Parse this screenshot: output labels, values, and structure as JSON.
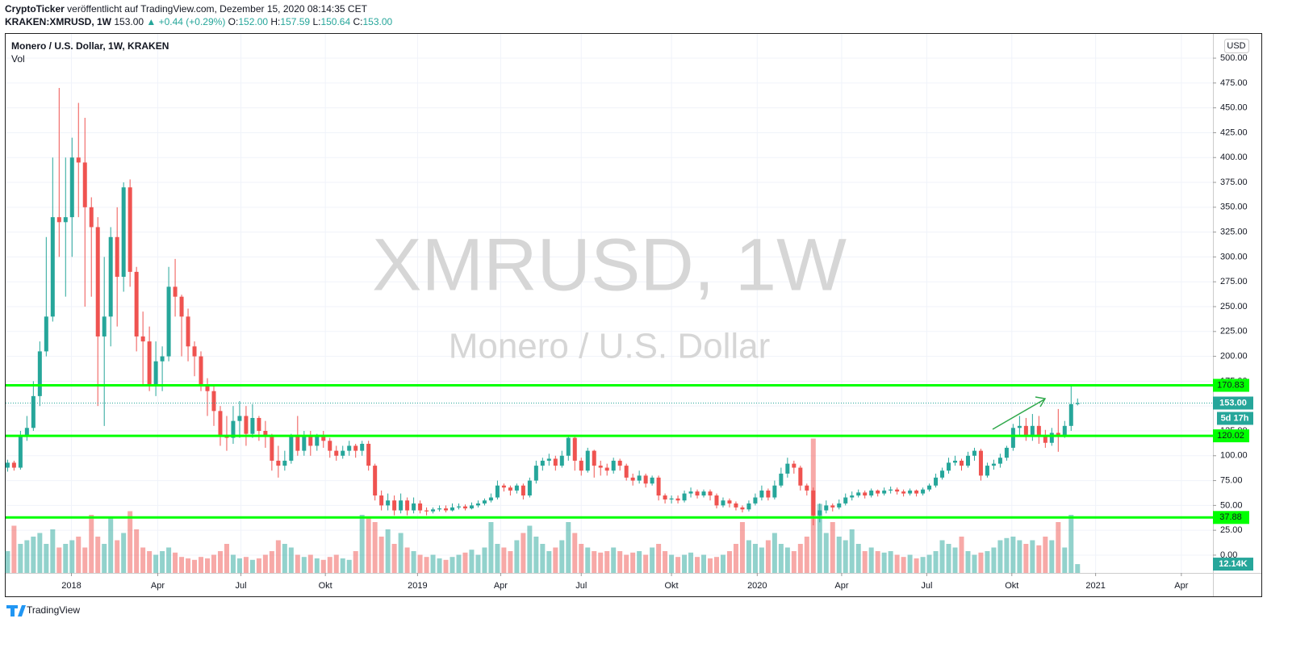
{
  "header": {
    "author": "CryptoTicker",
    "published": "veröffentlicht auf TradingView.com, Dezember 15, 2020 08:14:35 CET",
    "symbol": "KRAKEN:XMRUSD, 1W",
    "last": "153.00",
    "change": "▲ +0.44 (+0.29%)",
    "o_label": "O:",
    "o": "152.00",
    "h_label": "H:",
    "h": "157.59",
    "l_label": "L:",
    "l": "150.64",
    "c_label": "C:",
    "c": "153.00"
  },
  "footer": {
    "brand": "TradingView"
  },
  "chart_data": {
    "type": "candlestick",
    "title": "Monero / U.S. Dollar, 1W, KRAKEN",
    "volume_title": "Vol",
    "watermark": "XMRUSD, 1W",
    "watermark_subtitle": "Monero / U.S. Dollar",
    "currency": "USD",
    "up_color": "#26a69a",
    "down_color": "#ef5350",
    "level_color": "#00ff00",
    "grid": true,
    "ylim": [
      -17.9,
      524.4
    ],
    "xlim": [
      -0.3,
      187
    ],
    "yticks": [
      {
        "value": 0,
        "label": "0.00"
      },
      {
        "value": 25,
        "label": "25.00"
      },
      {
        "value": 50,
        "label": "50.00"
      },
      {
        "value": 75,
        "label": "75.00"
      },
      {
        "value": 100,
        "label": "100.00"
      },
      {
        "value": 125,
        "label": "125.00"
      },
      {
        "value": 150,
        "label": "150.00"
      },
      {
        "value": 175,
        "label": "175.00"
      },
      {
        "value": 200,
        "label": "200.00"
      },
      {
        "value": 225,
        "label": "225.00"
      },
      {
        "value": 250,
        "label": "250.00"
      },
      {
        "value": 275,
        "label": "275.00"
      },
      {
        "value": 300,
        "label": "300.00"
      },
      {
        "value": 325,
        "label": "325.00"
      },
      {
        "value": 350,
        "label": "350.00"
      },
      {
        "value": 375,
        "label": "375.00"
      },
      {
        "value": 400,
        "label": "400.00"
      },
      {
        "value": 425,
        "label": "425.00"
      },
      {
        "value": 450,
        "label": "450.00"
      },
      {
        "value": 475,
        "label": "475.00"
      },
      {
        "value": 500,
        "label": "500.00"
      }
    ],
    "xticks": [
      {
        "value": 9.9,
        "label": "2018"
      },
      {
        "value": 23.3,
        "label": "Apr"
      },
      {
        "value": 36.2,
        "label": "Jul"
      },
      {
        "value": 49.3,
        "label": "Okt"
      },
      {
        "value": 63.6,
        "label": "2019"
      },
      {
        "value": 76.5,
        "label": "Apr"
      },
      {
        "value": 89,
        "label": "Jul"
      },
      {
        "value": 103,
        "label": "Okt"
      },
      {
        "value": 116.3,
        "label": "2020"
      },
      {
        "value": 129.4,
        "label": "Apr"
      },
      {
        "value": 142.6,
        "label": "Jul"
      },
      {
        "value": 155.8,
        "label": "Okt"
      },
      {
        "value": 168.8,
        "label": "2021"
      },
      {
        "value": 182.1,
        "label": "Apr"
      }
    ],
    "levels": [
      170.83,
      120.02,
      37.88
    ],
    "last_price": {
      "value": 153,
      "label": "153.00"
    },
    "countdown": "5d 17h",
    "open": [
      88,
      93,
      88,
      120,
      128,
      160,
      205,
      240,
      340,
      335,
      340,
      400,
      395,
      350,
      330,
      220,
      240,
      320,
      280,
      370,
      285,
      220,
      215,
      170,
      195,
      200,
      270,
      260,
      240,
      210,
      200,
      170,
      165,
      145,
      120,
      118,
      135,
      140,
      122,
      138,
      125,
      120,
      95,
      90,
      95,
      120,
      105,
      120,
      110,
      120,
      115,
      105,
      100,
      105,
      110,
      105,
      112,
      90,
      60,
      50,
      55,
      45,
      55,
      45,
      52,
      45,
      44,
      46,
      47,
      45,
      48,
      49,
      47,
      50,
      52,
      55,
      58,
      70,
      68,
      65,
      70,
      60,
      75,
      90,
      95,
      97,
      90,
      100,
      118,
      95,
      85,
      105,
      90,
      88,
      85,
      95,
      90,
      78,
      75,
      80,
      72,
      78,
      60,
      56,
      57,
      55,
      62,
      64,
      60,
      64,
      60,
      50,
      55,
      52,
      48,
      46,
      52,
      58,
      65,
      58,
      70,
      82,
      92,
      88,
      70,
      65,
      40,
      45,
      50,
      48,
      52,
      58,
      60,
      63,
      60,
      65,
      62,
      65,
      66,
      64,
      62,
      65,
      62,
      66,
      70,
      78,
      85,
      93,
      95,
      90,
      100,
      105,
      80,
      90,
      92,
      98,
      108,
      128,
      130,
      120,
      130,
      120,
      113,
      123,
      120,
      130,
      152
    ],
    "high": [
      96,
      95,
      125,
      140,
      175,
      215,
      320,
      400,
      470,
      400,
      420,
      455,
      440,
      360,
      340,
      300,
      330,
      350,
      375,
      378,
      290,
      245,
      230,
      215,
      210,
      290,
      298,
      262,
      248,
      215,
      205,
      178,
      170,
      150,
      140,
      150,
      155,
      150,
      152,
      140,
      135,
      122,
      110,
      105,
      122,
      140,
      125,
      125,
      122,
      125,
      118,
      110,
      110,
      115,
      112,
      115,
      115,
      92,
      65,
      62,
      60,
      62,
      58,
      58,
      55,
      48,
      48,
      50,
      50,
      52,
      52,
      51,
      53,
      55,
      57,
      62,
      75,
      72,
      70,
      72,
      72,
      78,
      95,
      98,
      102,
      100,
      105,
      120,
      120,
      98,
      108,
      106,
      95,
      92,
      98,
      97,
      92,
      82,
      85,
      82,
      80,
      80,
      62,
      60,
      60,
      65,
      68,
      66,
      66,
      66,
      62,
      58,
      57,
      54,
      50,
      55,
      62,
      70,
      67,
      75,
      88,
      98,
      95,
      90,
      72,
      68,
      52,
      55,
      52,
      56,
      62,
      64,
      66,
      65,
      67,
      66,
      68,
      69,
      68,
      66,
      67,
      66,
      68,
      72,
      82,
      88,
      98,
      100,
      97,
      104,
      108,
      107,
      93,
      96,
      102,
      110,
      132,
      140,
      138,
      142,
      140,
      126,
      128,
      147,
      135,
      172,
      157.59
    ],
    "low": [
      84,
      85,
      86,
      115,
      125,
      150,
      200,
      235,
      300,
      260,
      300,
      340,
      250,
      260,
      150,
      130,
      210,
      230,
      265,
      270,
      205,
      170,
      165,
      160,
      165,
      195,
      240,
      200,
      195,
      180,
      165,
      140,
      130,
      110,
      105,
      112,
      118,
      110,
      118,
      115,
      108,
      85,
      78,
      85,
      92,
      100,
      100,
      100,
      105,
      108,
      98,
      95,
      97,
      100,
      98,
      100,
      85,
      55,
      45,
      45,
      40,
      42,
      40,
      42,
      42,
      40,
      42,
      44,
      43,
      44,
      46,
      45,
      46,
      48,
      50,
      53,
      56,
      64,
      60,
      62,
      56,
      58,
      72,
      85,
      90,
      85,
      88,
      95,
      85,
      80,
      83,
      78,
      80,
      80,
      82,
      85,
      75,
      70,
      72,
      68,
      70,
      55,
      52,
      52,
      52,
      53,
      58,
      57,
      58,
      55,
      47,
      48,
      48,
      45,
      43,
      44,
      50,
      55,
      55,
      56,
      68,
      78,
      82,
      65,
      60,
      30,
      33,
      42,
      44,
      46,
      50,
      55,
      58,
      57,
      58,
      59,
      60,
      62,
      61,
      59,
      60,
      59,
      60,
      64,
      68,
      76,
      82,
      90,
      85,
      88,
      95,
      75,
      78,
      86,
      88,
      95,
      105,
      120,
      115,
      115,
      112,
      108,
      110,
      104,
      118,
      125,
      150.64
    ],
    "close": [
      93,
      88,
      120,
      128,
      160,
      205,
      240,
      340,
      335,
      340,
      400,
      395,
      350,
      330,
      220,
      240,
      320,
      280,
      370,
      285,
      220,
      215,
      170,
      195,
      200,
      270,
      260,
      240,
      210,
      200,
      170,
      165,
      145,
      120,
      118,
      135,
      140,
      122,
      138,
      125,
      120,
      95,
      90,
      95,
      120,
      105,
      120,
      110,
      120,
      115,
      105,
      100,
      105,
      110,
      105,
      112,
      90,
      60,
      50,
      55,
      45,
      55,
      45,
      52,
      45,
      44,
      46,
      47,
      45,
      48,
      49,
      47,
      50,
      52,
      55,
      58,
      70,
      68,
      65,
      70,
      60,
      75,
      90,
      95,
      97,
      90,
      100,
      118,
      95,
      85,
      105,
      90,
      88,
      85,
      95,
      90,
      78,
      75,
      80,
      72,
      78,
      60,
      56,
      57,
      55,
      62,
      64,
      60,
      64,
      60,
      50,
      55,
      52,
      48,
      46,
      52,
      58,
      65,
      58,
      70,
      82,
      92,
      88,
      70,
      65,
      40,
      45,
      50,
      48,
      52,
      58,
      60,
      63,
      60,
      65,
      62,
      65,
      66,
      64,
      62,
      65,
      62,
      66,
      70,
      78,
      85,
      93,
      95,
      90,
      100,
      105,
      80,
      90,
      92,
      98,
      108,
      128,
      130,
      120,
      130,
      120,
      113,
      123,
      120,
      130,
      152,
      153
    ],
    "volume": [
      30,
      65,
      40,
      45,
      50,
      55,
      40,
      60,
      35,
      40,
      45,
      50,
      35,
      80,
      50,
      40,
      75,
      45,
      55,
      85,
      60,
      35,
      30,
      25,
      30,
      35,
      28,
      22,
      20,
      18,
      22,
      20,
      25,
      30,
      40,
      25,
      20,
      22,
      18,
      20,
      25,
      30,
      45,
      40,
      35,
      25,
      22,
      25,
      20,
      18,
      22,
      25,
      20,
      18,
      30,
      80,
      75,
      70,
      50,
      60,
      40,
      55,
      35,
      30,
      25,
      22,
      25,
      20,
      18,
      22,
      25,
      28,
      32,
      25,
      35,
      70,
      40,
      35,
      30,
      45,
      55,
      65,
      50,
      40,
      30,
      35,
      45,
      70,
      55,
      40,
      35,
      30,
      28,
      30,
      35,
      30,
      25,
      28,
      30,
      25,
      35,
      40,
      30,
      25,
      22,
      25,
      28,
      22,
      25,
      20,
      22,
      25,
      30,
      40,
      70,
      45,
      40,
      35,
      45,
      55,
      40,
      35,
      30,
      40,
      50,
      185,
      95,
      55,
      70,
      50,
      45,
      60,
      40,
      30,
      35,
      30,
      28,
      30,
      25,
      22,
      25,
      20,
      22,
      25,
      30,
      45,
      40,
      35,
      50,
      30,
      25,
      28,
      30,
      35,
      45,
      48,
      50,
      45,
      40,
      45,
      38,
      50,
      45,
      70,
      35,
      80,
      12.14
    ],
    "volume_last_label": "12.14K"
  }
}
